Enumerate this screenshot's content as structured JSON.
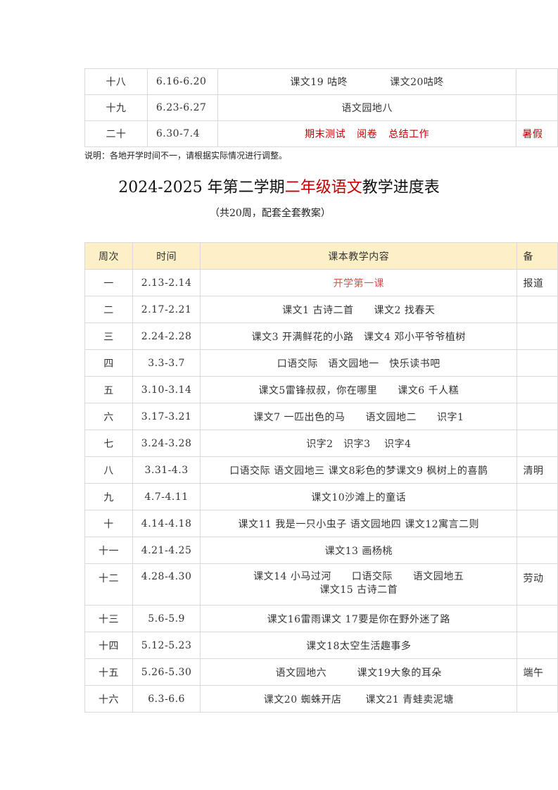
{
  "top_table": {
    "rows": [
      {
        "week": "十八",
        "dates": "6.16-6.20",
        "content": [
          "课文19 咕咚",
          "课文20咕咚"
        ],
        "note": ""
      },
      {
        "week": "十九",
        "dates": "6.23-6.27",
        "content": [
          "语文园地八"
        ],
        "note": ""
      },
      {
        "week": "二十",
        "dates": "6.30-7.4",
        "content": [
          "期末测试",
          "阅卷",
          "总结工作"
        ],
        "note": "暑假"
      }
    ]
  },
  "note_text": "说明：各地开学时间不一，请根据实际情况进行调整。",
  "title": {
    "part1": "2024-2025 年第二学期",
    "highlight": "二年级语文",
    "part2": "教学进度表"
  },
  "subtitle": "（共20周，配套全套教案）",
  "colors": {
    "accent_red": "#c00000",
    "header_bg": "#fdf0c6",
    "border": "#d9d9d9"
  },
  "main_table": {
    "headers": {
      "week": "周次",
      "dates": "时间",
      "content": "课本教学内容",
      "note": "备"
    },
    "rows": [
      {
        "week": "一",
        "dates": "2.13-2.14",
        "content": "开学第一课",
        "note": "报道"
      },
      {
        "week": "二",
        "dates": "2.17-2.21",
        "content": "课文1 古诗二首　　课文2 找春天",
        "note": ""
      },
      {
        "week": "三",
        "dates": "2.24-2.28",
        "content": "课文3 开满鲜花的小路　课文4 邓小平爷爷植树",
        "note": ""
      },
      {
        "week": "四",
        "dates": "3.3-3.7",
        "content": "口语交际　语文园地一　快乐读书吧",
        "note": ""
      },
      {
        "week": "五",
        "dates": "3.10-3.14",
        "content": "课文5雷锋叔叔，你在哪里　　课文6 千人糕",
        "note": ""
      },
      {
        "week": "六",
        "dates": "3.17-3.21",
        "content": "课文7 一匹出色的马　　语文园地二　　识字1",
        "note": ""
      },
      {
        "week": "七",
        "dates": "3.24-3.28",
        "content": "识字2　识字3　 识字4",
        "note": ""
      },
      {
        "week": "八",
        "dates": "3.31-4.3",
        "content": "口语交际 语文园地三 课文8彩色的梦课文9 枫树上的喜鹊",
        "note": "清明"
      },
      {
        "week": "九",
        "dates": "4.7-4.11",
        "content": "课文10沙滩上的童话",
        "note": ""
      },
      {
        "week": "十",
        "dates": "4.14-4.18",
        "content": "课文11 我是一只小虫子 语文园地四 课文12寓言二则",
        "note": ""
      },
      {
        "week": "十一",
        "dates": "4.21-4.25",
        "content": "课文13 画杨桃",
        "note": ""
      },
      {
        "week": "十二",
        "dates": "4.28-4.30",
        "content": "课文14 小马过河　　口语交际　　语文园地五",
        "content2": "课文15 古诗二首",
        "note": "劳动"
      },
      {
        "week": "十三",
        "dates": "5.6-5.9",
        "content": "课文16雷雨课文 17要是你在野外迷了路",
        "note": ""
      },
      {
        "week": "十四",
        "dates": "5.12-5.23",
        "content": "课文18太空生活趣事多",
        "note": ""
      },
      {
        "week": "十五",
        "dates": "5.26-5.30",
        "content": "语文园地六　　　课文19大象的耳朵",
        "note": "端午"
      },
      {
        "week": "十六",
        "dates": "6.3-6.6",
        "content": "课文20 蜘蛛开店　　 课文21 青蛙卖泥塘",
        "note": ""
      }
    ]
  }
}
